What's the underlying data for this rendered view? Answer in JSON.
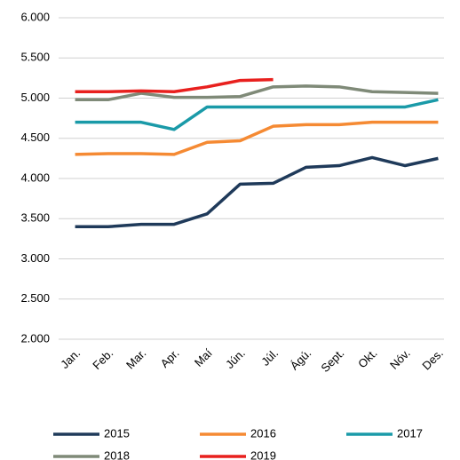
{
  "chart_data": {
    "type": "line",
    "categories": [
      "Jan.",
      "Feb.",
      "Mar.",
      "Apr.",
      "Maí",
      "Jún.",
      "Júl.",
      "Ágú.",
      "Sept.",
      "Okt.",
      "Nóv.",
      "Des."
    ],
    "series": [
      {
        "name": "2015",
        "color": "#1f3a5a",
        "values": [
          3400,
          3400,
          3430,
          3430,
          3560,
          3930,
          3940,
          4140,
          4160,
          4260,
          4160,
          4250
        ]
      },
      {
        "name": "2016",
        "color": "#f58a33",
        "values": [
          4300,
          4310,
          4310,
          4300,
          4450,
          4470,
          4650,
          4670,
          4670,
          4700,
          4700,
          4700
        ]
      },
      {
        "name": "2017",
        "color": "#1a9aa8",
        "values": [
          4700,
          4700,
          4700,
          4610,
          4890,
          4890,
          4890,
          4890,
          4890,
          4890,
          4890,
          4980
        ]
      },
      {
        "name": "2018",
        "color": "#7f8a78",
        "values": [
          4980,
          4980,
          5060,
          5010,
          5010,
          5020,
          5140,
          5150,
          5140,
          5080,
          5070,
          5060
        ]
      },
      {
        "name": "2019",
        "color": "#e8201e",
        "values": [
          5080,
          5080,
          5090,
          5080,
          5140,
          5220,
          5230,
          null,
          null,
          null,
          null,
          null
        ]
      }
    ],
    "ylim": [
      2000,
      6000
    ],
    "yticks": [
      {
        "value": 2000,
        "label": "2.000"
      },
      {
        "value": 2500,
        "label": "2.500"
      },
      {
        "value": 3000,
        "label": "3.000"
      },
      {
        "value": 3500,
        "label": "3.500"
      },
      {
        "value": 4000,
        "label": "4.000"
      },
      {
        "value": 4500,
        "label": "4.500"
      },
      {
        "value": 5000,
        "label": "5.000"
      },
      {
        "value": 5500,
        "label": "5.500"
      },
      {
        "value": 6000,
        "label": "6.000"
      }
    ],
    "grid": true
  }
}
